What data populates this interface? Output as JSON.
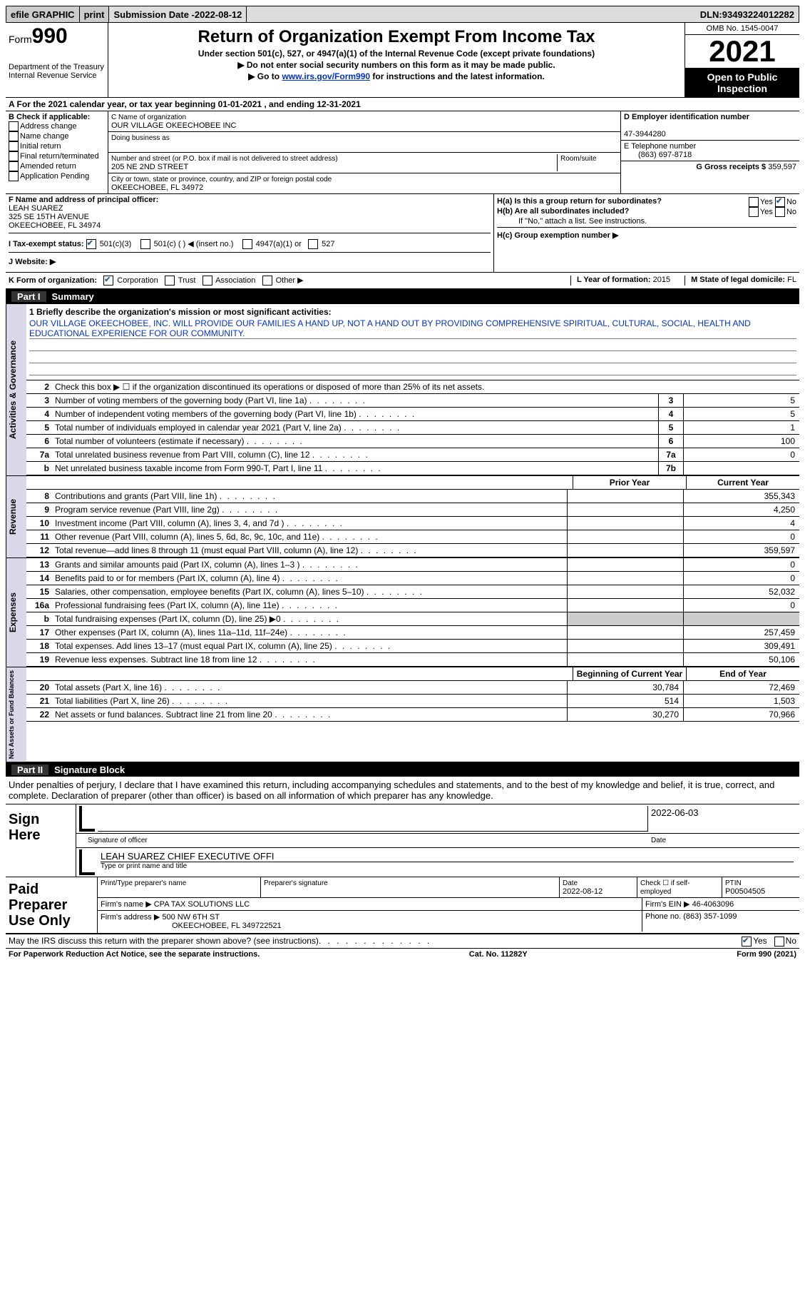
{
  "topbar": {
    "efile": "efile GRAPHIC",
    "print": "print",
    "subdate_label": "Submission Date - ",
    "subdate": "2022-08-12",
    "dln_label": "DLN: ",
    "dln": "93493224012282"
  },
  "header": {
    "form_label": "Form",
    "form_num": "990",
    "dept": "Department of the Treasury",
    "irs": "Internal Revenue Service",
    "title": "Return of Organization Exempt From Income Tax",
    "sub1": "Under section 501(c), 527, or 4947(a)(1) of the Internal Revenue Code (except private foundations)",
    "sub2": "▶ Do not enter social security numbers on this form as it may be made public.",
    "sub3_pre": "▶ Go to ",
    "sub3_link": "www.irs.gov/Form990",
    "sub3_post": " for instructions and the latest information.",
    "omb": "OMB No. 1545-0047",
    "year": "2021",
    "inspect": "Open to Public Inspection"
  },
  "rowA": {
    "text": "A For the 2021 calendar year, or tax year beginning 01-01-2021    , and ending 12-31-2021"
  },
  "colB": {
    "title": "B Check if applicable:",
    "opts": [
      "Address change",
      "Name change",
      "Initial return",
      "Final return/terminated",
      "Amended return",
      "Application Pending"
    ]
  },
  "colC": {
    "name_label": "C Name of organization",
    "name": "OUR VILLAGE OKEECHOBEE INC",
    "dba_label": "Doing business as",
    "addr_label": "Number and street (or P.O. box if mail is not delivered to street address)",
    "room_label": "Room/suite",
    "addr": "205 NE 2ND STREET",
    "city_label": "City or town, state or province, country, and ZIP or foreign postal code",
    "city": "OKEECHOBEE, FL  34972"
  },
  "colDE": {
    "d_label": "D Employer identification number",
    "d_val": "47-3944280",
    "e_label": "E Telephone number",
    "e_val": "(863) 697-8718",
    "g_label": "G Gross receipts $ ",
    "g_val": "359,597"
  },
  "f": {
    "label": "F Name and address of principal officer:",
    "name": "LEAH SUAREZ",
    "addr1": "325 SE 15TH AVENUE",
    "addr2": "OKEECHOBEE, FL  34974"
  },
  "i": {
    "label": "I Tax-exempt status:",
    "c3": "501(c)(3)",
    "c": "501(c) (  ) ◀ (insert no.)",
    "a1": "4947(a)(1) or",
    "s527": "527"
  },
  "j": {
    "label": "J   Website: ▶"
  },
  "h": {
    "a_label": "H(a)  Is this a group return for subordinates?",
    "b_label": "H(b)  Are all subordinates included?",
    "b_note": "If \"No,\" attach a list. See instructions.",
    "c_label": "H(c)  Group exemption number ▶",
    "yes": "Yes",
    "no": "No"
  },
  "k": {
    "label": "K Form of organization:",
    "corp": "Corporation",
    "trust": "Trust",
    "assoc": "Association",
    "other": "Other ▶",
    "l_label": "L Year of formation: ",
    "l_val": "2015",
    "m_label": "M State of legal domicile: ",
    "m_val": "FL"
  },
  "part1": {
    "num": "Part I",
    "title": "Summary"
  },
  "sections": {
    "activities": "Activities & Governance",
    "revenue": "Revenue",
    "expenses": "Expenses",
    "net": "Net Assets or Fund Balances"
  },
  "mission": {
    "label": "1  Briefly describe the organization's mission or most significant activities:",
    "text": "OUR VILLAGE OKEECHOBEE, INC. WILL PROVIDE OUR FAMILIES A HAND UP, NOT A HAND OUT BY PROVIDING COMPREHENSIVE SPIRITUAL, CULTURAL, SOCIAL, HEALTH AND EDUCATIONAL EXPERIENCE FOR OUR COMMUNITY."
  },
  "lines_gov": [
    {
      "n": "2",
      "label": "Check this box ▶ ☐  if the organization discontinued its operations or disposed of more than 25% of its net assets.",
      "box": "",
      "val": ""
    },
    {
      "n": "3",
      "label": "Number of voting members of the governing body (Part VI, line 1a)",
      "box": "3",
      "val": "5"
    },
    {
      "n": "4",
      "label": "Number of independent voting members of the governing body (Part VI, line 1b)",
      "box": "4",
      "val": "5"
    },
    {
      "n": "5",
      "label": "Total number of individuals employed in calendar year 2021 (Part V, line 2a)",
      "box": "5",
      "val": "1"
    },
    {
      "n": "6",
      "label": "Total number of volunteers (estimate if necessary)",
      "box": "6",
      "val": "100"
    },
    {
      "n": "7a",
      "label": "Total unrelated business revenue from Part VIII, column (C), line 12",
      "box": "7a",
      "val": "0"
    },
    {
      "n": "b",
      "label": "Net unrelated business taxable income from Form 990-T, Part I, line 11",
      "box": "7b",
      "val": ""
    }
  ],
  "two_head": {
    "prior": "Prior Year",
    "current": "Current Year"
  },
  "lines_rev": [
    {
      "n": "8",
      "label": "Contributions and grants (Part VIII, line 1h)",
      "p": "",
      "c": "355,343"
    },
    {
      "n": "9",
      "label": "Program service revenue (Part VIII, line 2g)",
      "p": "",
      "c": "4,250"
    },
    {
      "n": "10",
      "label": "Investment income (Part VIII, column (A), lines 3, 4, and 7d )",
      "p": "",
      "c": "4"
    },
    {
      "n": "11",
      "label": "Other revenue (Part VIII, column (A), lines 5, 6d, 8c, 9c, 10c, and 11e)",
      "p": "",
      "c": "0"
    },
    {
      "n": "12",
      "label": "Total revenue—add lines 8 through 11 (must equal Part VIII, column (A), line 12)",
      "p": "",
      "c": "359,597"
    }
  ],
  "lines_exp": [
    {
      "n": "13",
      "label": "Grants and similar amounts paid (Part IX, column (A), lines 1–3 )",
      "p": "",
      "c": "0"
    },
    {
      "n": "14",
      "label": "Benefits paid to or for members (Part IX, column (A), line 4)",
      "p": "",
      "c": "0"
    },
    {
      "n": "15",
      "label": "Salaries, other compensation, employee benefits (Part IX, column (A), lines 5–10)",
      "p": "",
      "c": "52,032"
    },
    {
      "n": "16a",
      "label": "Professional fundraising fees (Part IX, column (A), line 11e)",
      "p": "",
      "c": "0"
    },
    {
      "n": "b",
      "label": "Total fundraising expenses (Part IX, column (D), line 25) ▶0",
      "p": "grey",
      "c": "grey"
    },
    {
      "n": "17",
      "label": "Other expenses (Part IX, column (A), lines 11a–11d, 11f–24e)",
      "p": "",
      "c": "257,459"
    },
    {
      "n": "18",
      "label": "Total expenses. Add lines 13–17 (must equal Part IX, column (A), line 25)",
      "p": "",
      "c": "309,491"
    },
    {
      "n": "19",
      "label": "Revenue less expenses. Subtract line 18 from line 12",
      "p": "",
      "c": "50,106"
    }
  ],
  "net_head": {
    "begin": "Beginning of Current Year",
    "end": "End of Year"
  },
  "lines_net": [
    {
      "n": "20",
      "label": "Total assets (Part X, line 16)",
      "p": "30,784",
      "c": "72,469"
    },
    {
      "n": "21",
      "label": "Total liabilities (Part X, line 26)",
      "p": "514",
      "c": "1,503"
    },
    {
      "n": "22",
      "label": "Net assets or fund balances. Subtract line 21 from line 20",
      "p": "30,270",
      "c": "70,966"
    }
  ],
  "part2": {
    "num": "Part II",
    "title": "Signature Block",
    "decl": "Under penalties of perjury, I declare that I have examined this return, including accompanying schedules and statements, and to the best of my knowledge and belief, it is true, correct, and complete. Declaration of preparer (other than officer) is based on all information of which preparer has any knowledge."
  },
  "sign": {
    "here": "Sign Here",
    "sig_label": "Signature of officer",
    "date_label": "Date",
    "date_val": "2022-06-03",
    "name": "LEAH SUAREZ  CHIEF EXECUTIVE OFFI",
    "name_label": "Type or print name and title"
  },
  "paid": {
    "title": "Paid Preparer Use Only",
    "prep_name_label": "Print/Type preparer's name",
    "prep_sig_label": "Preparer's signature",
    "date_label": "Date",
    "date_val": "2022-08-12",
    "check_label": "Check ☐ if self-employed",
    "ptin_label": "PTIN",
    "ptin_val": "P00504505",
    "firm_name_label": "Firm's name    ▶ ",
    "firm_name": "CPA TAX SOLUTIONS LLC",
    "firm_ein_label": "Firm's EIN ▶ ",
    "firm_ein": "46-4063096",
    "firm_addr_label": "Firm's address ▶ ",
    "firm_addr1": "500 NW 6TH ST",
    "firm_addr2": "OKEECHOBEE, FL  349722521",
    "phone_label": "Phone no. ",
    "phone": "(863) 357-1099"
  },
  "may": {
    "text": "May the IRS discuss this return with the preparer shown above? (see instructions)",
    "yes": "Yes",
    "no": "No"
  },
  "footer": {
    "left": "For Paperwork Reduction Act Notice, see the separate instructions.",
    "mid": "Cat. No. 11282Y",
    "right": "Form 990 (2021)"
  }
}
